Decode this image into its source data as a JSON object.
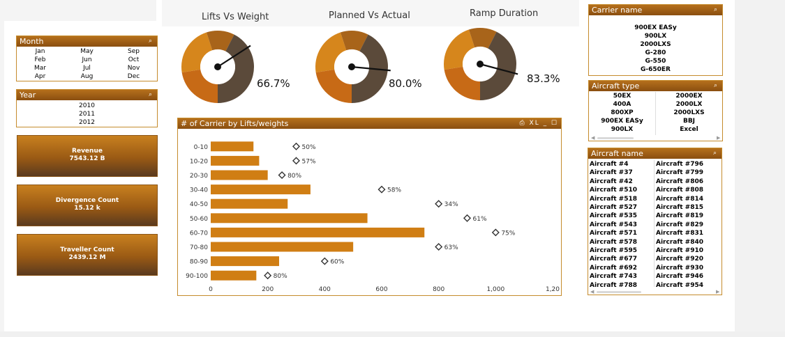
{
  "filters": {
    "month": {
      "title": "Month",
      "columns": [
        [
          "Jan",
          "Feb",
          "Mar",
          "Apr"
        ],
        [
          "May",
          "Jun",
          "Jul",
          "Aug"
        ],
        [
          "Sep",
          "Oct",
          "Nov",
          "Dec"
        ]
      ]
    },
    "year": {
      "title": "Year",
      "items": [
        "2010",
        "2011",
        "2012"
      ]
    },
    "carrier_name": {
      "title": "Carrier name",
      "items": [
        "900EX EASy",
        "900LX",
        "2000LXS",
        "G-280",
        "G-550",
        "G-650ER"
      ]
    },
    "aircraft_type": {
      "title": "Aircraft type",
      "left": [
        "50EX",
        "400A",
        "800XP",
        "900EX EASy",
        "900LX"
      ],
      "right": [
        "2000EX",
        "2000LX",
        "2000LXS",
        "BBJ",
        "Excel"
      ]
    },
    "aircraft_name": {
      "title": "Aircraft name",
      "left": [
        "Aircraft #4",
        "Aircraft #37",
        "Aircraft #42",
        "Aircraft #510",
        "Aircraft #518",
        "Aircraft #527",
        "Aircraft #535",
        "Aircraft #543",
        "Aircraft #571",
        "Aircraft #578",
        "Aircraft #595",
        "Aircraft #677",
        "Aircraft #692",
        "Aircraft #743",
        "Aircraft #788"
      ],
      "right": [
        "Aircraft #796",
        "Aircraft #799",
        "Aircraft #806",
        "Aircraft #808",
        "Aircraft #814",
        "Aircraft #815",
        "Aircraft #819",
        "Aircraft #829",
        "Aircraft #831",
        "Aircraft #840",
        "Aircraft #910",
        "Aircraft #920",
        "Aircraft #930",
        "Aircraft #946",
        "Aircraft #954"
      ]
    }
  },
  "kpis": [
    {
      "label": "Revenue",
      "value": "7543.12 B"
    },
    {
      "label": "Divergence Count",
      "value": "15.12 k"
    },
    {
      "label": "Traveller Count",
      "value": "2439.12 M"
    }
  ],
  "gauges": [
    {
      "title": "Lifts Vs Weight",
      "value_label": "66.7%",
      "value": 0.667
    },
    {
      "title": "Planned Vs Actual",
      "value_label": "80.0%",
      "value": 0.8
    },
    {
      "title": "Ramp Duration",
      "value_label": "83.3%",
      "value": 0.833
    }
  ],
  "colors": {
    "accent": "#c97c15",
    "bar": "#d07e14",
    "header_dark": "#8a4e10",
    "gauge_orange": "#c76a16",
    "gauge_brown": "#5b4a3a"
  },
  "chart_panel": {
    "title": "# of  Carrier by Lifts/weights",
    "tool_icons": "⎙ XL _ ☐"
  },
  "chart_data": {
    "type": "bar",
    "orientation": "horizontal",
    "title": "# of  Carrier by Lifts/weights",
    "categories": [
      "0-10",
      "10-20",
      "20-30",
      "30-40",
      "40-50",
      "50-60",
      "60-70",
      "70-80",
      "80-90",
      "90-100"
    ],
    "series": [
      {
        "values": [
          150,
          170,
          200,
          350,
          270,
          550,
          750,
          500,
          240,
          160
        ]
      }
    ],
    "markers": {
      "x": [
        300,
        300,
        250,
        600,
        800,
        900,
        1000,
        800,
        400,
        200
      ],
      "labels": [
        "50%",
        "57%",
        "80%",
        "58%",
        "34%",
        "61%",
        "75%",
        "63%",
        "60%",
        "80%"
      ]
    },
    "xticks": [
      "0",
      "200",
      "400",
      "600",
      "800",
      "1,000",
      "1,20"
    ],
    "xlim": [
      0,
      1200
    ],
    "grid": false
  }
}
